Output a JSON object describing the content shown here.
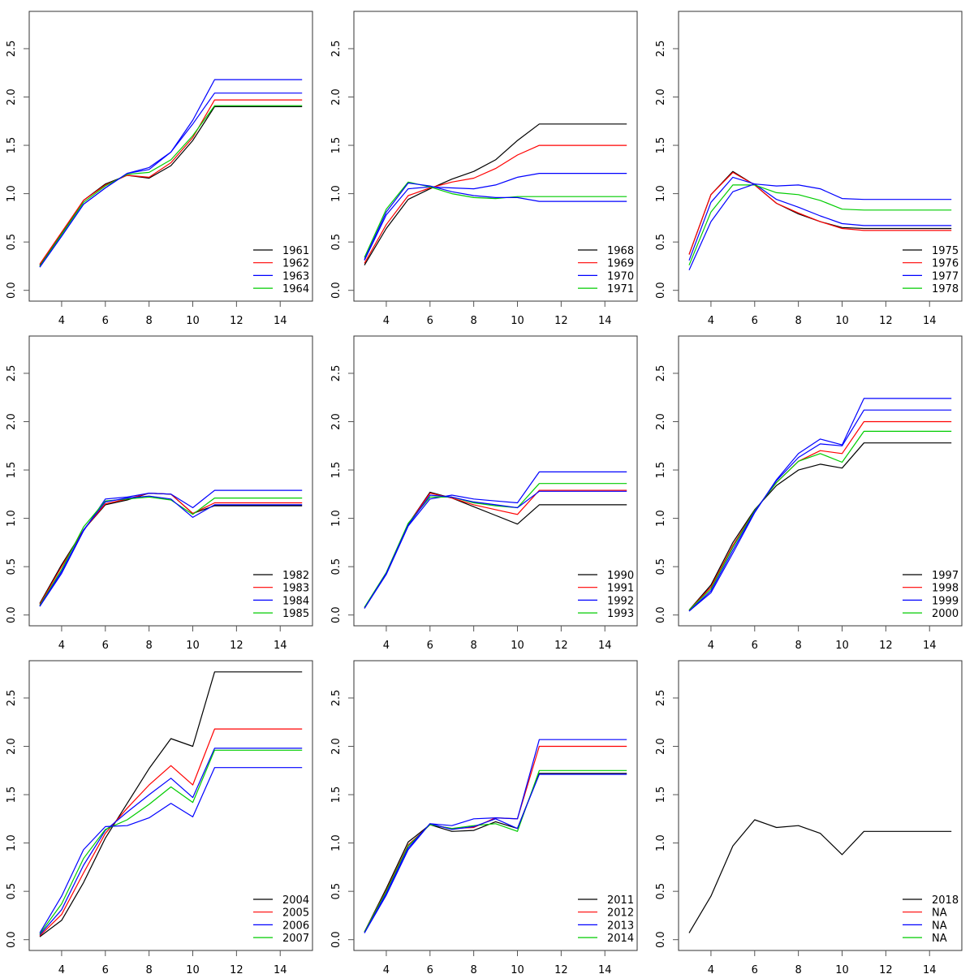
{
  "chart_data": {
    "type": "line",
    "layout": "3x3 grid of panels",
    "x": [
      3,
      4,
      5,
      6,
      7,
      8,
      9,
      10,
      11,
      12,
      13,
      14,
      15
    ],
    "xlim": [
      3,
      15
    ],
    "ylim": [
      0,
      2.8
    ],
    "xticks": [
      "4",
      "6",
      "8",
      "10",
      "12",
      "14"
    ],
    "yticks": [
      "0.0",
      "0.5",
      "1.0",
      "1.5",
      "2.0",
      "2.5"
    ],
    "xlabel": "",
    "ylabel": "",
    "legend_position": "bottom-right",
    "series_colors": [
      "#000000",
      "#ff0000",
      "#0000ff",
      "#00cc00",
      "#0000ff"
    ],
    "panels": [
      {
        "legend": [
          "1961",
          "1962",
          "1963",
          "1964"
        ],
        "series": [
          {
            "name": "1961",
            "color": "#000000",
            "values": [
              0.26,
              0.59,
              0.93,
              1.1,
              1.19,
              1.16,
              1.29,
              1.55,
              1.9,
              1.9,
              1.9,
              1.9,
              1.9
            ]
          },
          {
            "name": "1962",
            "color": "#ff0000",
            "values": [
              0.27,
              0.6,
              0.93,
              1.09,
              1.19,
              1.17,
              1.32,
              1.58,
              1.97,
              1.97,
              1.97,
              1.97,
              1.97
            ]
          },
          {
            "name": "1963",
            "color": "#0000ff",
            "values": [
              0.24,
              0.56,
              0.89,
              1.06,
              1.21,
              1.27,
              1.43,
              1.76,
              2.18,
              2.18,
              2.18,
              2.18,
              2.18
            ]
          },
          {
            "name": "1964",
            "color": "#00cc00",
            "values": [
              0.25,
              0.58,
              0.91,
              1.08,
              1.2,
              1.22,
              1.35,
              1.6,
              1.91,
              1.91,
              1.91,
              1.91,
              1.91
            ]
          },
          {
            "name": "",
            "color": "#0000ff",
            "values": [
              0.24,
              0.56,
              0.89,
              1.06,
              1.21,
              1.25,
              1.43,
              1.72,
              2.04,
              2.04,
              2.04,
              2.04,
              2.04
            ]
          }
        ]
      },
      {
        "legend": [
          "1968",
          "1969",
          "1970",
          "1971"
        ],
        "series": [
          {
            "name": "1968",
            "color": "#000000",
            "values": [
              0.26,
              0.64,
              0.94,
              1.05,
              1.15,
              1.23,
              1.35,
              1.55,
              1.72,
              1.72,
              1.72,
              1.72,
              1.72
            ]
          },
          {
            "name": "1969",
            "color": "#ff0000",
            "values": [
              0.28,
              0.68,
              0.98,
              1.06,
              1.12,
              1.16,
              1.26,
              1.4,
              1.5,
              1.5,
              1.5,
              1.5,
              1.5
            ]
          },
          {
            "name": "1970",
            "color": "#0000ff",
            "values": [
              0.31,
              0.78,
              1.05,
              1.07,
              1.06,
              1.05,
              1.09,
              1.17,
              1.21,
              1.21,
              1.21,
              1.21,
              1.21
            ]
          },
          {
            "name": "1971",
            "color": "#00cc00",
            "values": [
              0.34,
              0.84,
              1.12,
              1.07,
              1.0,
              0.96,
              0.95,
              0.97,
              0.97,
              0.97,
              0.97,
              0.97,
              0.97
            ]
          },
          {
            "name": "",
            "color": "#0000ff",
            "values": [
              0.32,
              0.81,
              1.11,
              1.08,
              1.02,
              0.98,
              0.96,
              0.96,
              0.92,
              0.92,
              0.92,
              0.92,
              0.92
            ]
          }
        ]
      },
      {
        "legend": [
          "1975",
          "1976",
          "1977",
          "1978"
        ],
        "series": [
          {
            "name": "1975",
            "color": "#000000",
            "values": [
              0.37,
              0.99,
              1.23,
              1.09,
              0.9,
              0.79,
              0.71,
              0.65,
              0.64,
              0.64,
              0.64,
              0.64,
              0.64
            ]
          },
          {
            "name": "1976",
            "color": "#ff0000",
            "values": [
              0.37,
              0.99,
              1.22,
              1.09,
              0.9,
              0.8,
              0.71,
              0.64,
              0.62,
              0.62,
              0.62,
              0.62,
              0.62
            ]
          },
          {
            "name": "1977",
            "color": "#0000ff",
            "values": [
              0.31,
              0.91,
              1.17,
              1.1,
              0.94,
              0.86,
              0.77,
              0.69,
              0.67,
              0.67,
              0.67,
              0.67,
              0.67
            ]
          },
          {
            "name": "1978",
            "color": "#00cc00",
            "values": [
              0.26,
              0.81,
              1.09,
              1.09,
              1.01,
              0.99,
              0.93,
              0.84,
              0.83,
              0.83,
              0.83,
              0.83,
              0.83
            ]
          },
          {
            "name": "",
            "color": "#0000ff",
            "values": [
              0.21,
              0.71,
              1.02,
              1.1,
              1.08,
              1.09,
              1.05,
              0.95,
              0.94,
              0.94,
              0.94,
              0.94,
              0.94
            ]
          }
        ]
      },
      {
        "legend": [
          "1982",
          "1983",
          "1984",
          "1985"
        ],
        "series": [
          {
            "name": "1982",
            "color": "#000000",
            "values": [
              0.12,
              0.52,
              0.88,
              1.14,
              1.19,
              1.26,
              1.25,
              1.05,
              1.13,
              1.13,
              1.13,
              1.13,
              1.13
            ]
          },
          {
            "name": "1983",
            "color": "#ff0000",
            "values": [
              0.11,
              0.5,
              0.88,
              1.15,
              1.2,
              1.26,
              1.25,
              1.05,
              1.16,
              1.16,
              1.16,
              1.16,
              1.16
            ]
          },
          {
            "name": "1984",
            "color": "#0000ff",
            "values": [
              0.09,
              0.43,
              0.87,
              1.2,
              1.22,
              1.26,
              1.25,
              1.11,
              1.29,
              1.29,
              1.29,
              1.29,
              1.29
            ]
          },
          {
            "name": "1985",
            "color": "#00cc00",
            "values": [
              0.1,
              0.47,
              0.91,
              1.18,
              1.2,
              1.22,
              1.19,
              1.04,
              1.21,
              1.21,
              1.21,
              1.21,
              1.21
            ]
          },
          {
            "name": "",
            "color": "#0000ff",
            "values": [
              0.09,
              0.45,
              0.88,
              1.17,
              1.21,
              1.23,
              1.2,
              1.01,
              1.14,
              1.14,
              1.14,
              1.14,
              1.14
            ]
          }
        ]
      },
      {
        "legend": [
          "1990",
          "1991",
          "1992",
          "1993"
        ],
        "series": [
          {
            "name": "1990",
            "color": "#000000",
            "values": [
              0.07,
              0.43,
              0.94,
              1.27,
              1.21,
              1.12,
              1.03,
              0.94,
              1.14,
              1.14,
              1.14,
              1.14,
              1.14
            ]
          },
          {
            "name": "1991",
            "color": "#ff0000",
            "values": [
              0.07,
              0.43,
              0.94,
              1.26,
              1.21,
              1.14,
              1.09,
              1.04,
              1.29,
              1.29,
              1.29,
              1.29,
              1.29
            ]
          },
          {
            "name": "1992",
            "color": "#0000ff",
            "values": [
              0.07,
              0.42,
              0.92,
              1.2,
              1.24,
              1.2,
              1.18,
              1.16,
              1.48,
              1.48,
              1.48,
              1.48,
              1.48
            ]
          },
          {
            "name": "1993",
            "color": "#00cc00",
            "values": [
              0.08,
              0.44,
              0.95,
              1.22,
              1.22,
              1.16,
              1.13,
              1.11,
              1.36,
              1.36,
              1.36,
              1.36,
              1.36
            ]
          },
          {
            "name": "",
            "color": "#0000ff",
            "values": [
              0.07,
              0.43,
              0.93,
              1.24,
              1.22,
              1.17,
              1.14,
              1.11,
              1.28,
              1.28,
              1.28,
              1.28,
              1.28
            ]
          }
        ]
      },
      {
        "legend": [
          "1997",
          "1998",
          "1999",
          "2000"
        ],
        "series": [
          {
            "name": "1997",
            "color": "#000000",
            "values": [
              0.05,
              0.31,
              0.75,
              1.09,
              1.34,
              1.5,
              1.56,
              1.52,
              1.78,
              1.78,
              1.78,
              1.78,
              1.78
            ]
          },
          {
            "name": "1998",
            "color": "#ff0000",
            "values": [
              0.05,
              0.29,
              0.72,
              1.08,
              1.37,
              1.59,
              1.7,
              1.67,
              2.0,
              2.0,
              2.0,
              2.0,
              2.0
            ]
          },
          {
            "name": "1999",
            "color": "#0000ff",
            "values": [
              0.04,
              0.23,
              0.64,
              1.06,
              1.4,
              1.67,
              1.82,
              1.76,
              2.24,
              2.24,
              2.24,
              2.24,
              2.24
            ]
          },
          {
            "name": "2000",
            "color": "#00cc00",
            "values": [
              0.05,
              0.27,
              0.7,
              1.08,
              1.37,
              1.59,
              1.67,
              1.58,
              1.9,
              1.9,
              1.9,
              1.9,
              1.9
            ]
          },
          {
            "name": "",
            "color": "#0000ff",
            "values": [
              0.04,
              0.25,
              0.67,
              1.07,
              1.39,
              1.63,
              1.77,
              1.75,
              2.12,
              2.12,
              2.12,
              2.12,
              2.12
            ]
          }
        ]
      },
      {
        "legend": [
          "2004",
          "2005",
          "2006",
          "2007"
        ],
        "series": [
          {
            "name": "2004",
            "color": "#000000",
            "values": [
              0.03,
              0.2,
              0.59,
              1.05,
              1.41,
              1.77,
              2.08,
              2.0,
              2.77,
              2.77,
              2.77,
              2.77,
              2.77
            ]
          },
          {
            "name": "2005",
            "color": "#ff0000",
            "values": [
              0.04,
              0.26,
              0.69,
              1.1,
              1.36,
              1.6,
              1.8,
              1.6,
              2.18,
              2.18,
              2.18,
              2.18,
              2.18
            ]
          },
          {
            "name": "2006",
            "color": "#0000ff",
            "values": [
              0.05,
              0.31,
              0.77,
              1.13,
              1.32,
              1.5,
              1.67,
              1.47,
              1.98,
              1.98,
              1.98,
              1.98,
              1.98
            ]
          },
          {
            "name": "2007",
            "color": "#00cc00",
            "values": [
              0.06,
              0.37,
              0.84,
              1.14,
              1.24,
              1.4,
              1.58,
              1.42,
              1.96,
              1.96,
              1.96,
              1.96,
              1.96
            ]
          },
          {
            "name": "",
            "color": "#0000ff",
            "values": [
              0.07,
              0.45,
              0.93,
              1.17,
              1.18,
              1.26,
              1.41,
              1.27,
              1.78,
              1.78,
              1.78,
              1.78,
              1.78
            ]
          }
        ]
      },
      {
        "legend": [
          "2011",
          "2012",
          "2013",
          "2014"
        ],
        "series": [
          {
            "name": "2011",
            "color": "#000000",
            "values": [
              0.08,
              0.53,
              1.01,
              1.19,
              1.12,
              1.13,
              1.22,
              1.15,
              1.72,
              1.72,
              1.72,
              1.72,
              1.72
            ]
          },
          {
            "name": "2012",
            "color": "#ff0000",
            "values": [
              0.08,
              0.51,
              0.98,
              1.19,
              1.15,
              1.16,
              1.26,
              1.25,
              2.0,
              2.0,
              2.0,
              2.0,
              2.0
            ]
          },
          {
            "name": "2013",
            "color": "#0000ff",
            "values": [
              0.07,
              0.46,
              0.93,
              1.2,
              1.18,
              1.25,
              1.26,
              1.25,
              2.07,
              2.07,
              2.07,
              2.07,
              2.07
            ]
          },
          {
            "name": "2014",
            "color": "#00cc00",
            "values": [
              0.08,
              0.5,
              0.97,
              1.19,
              1.15,
              1.18,
              1.2,
              1.12,
              1.75,
              1.75,
              1.75,
              1.75,
              1.75
            ]
          },
          {
            "name": "",
            "color": "#0000ff",
            "values": [
              0.07,
              0.48,
              0.95,
              1.2,
              1.14,
              1.17,
              1.25,
              1.15,
              1.71,
              1.71,
              1.71,
              1.71,
              1.71
            ]
          }
        ]
      },
      {
        "legend": [
          "2018",
          "NA",
          "NA",
          "NA"
        ],
        "series": [
          {
            "name": "2018",
            "color": "#000000",
            "values": [
              0.07,
              0.45,
              0.97,
              1.24,
              1.16,
              1.18,
              1.1,
              0.88,
              1.12,
              1.12,
              1.12,
              1.12,
              1.12
            ]
          }
        ]
      }
    ]
  }
}
